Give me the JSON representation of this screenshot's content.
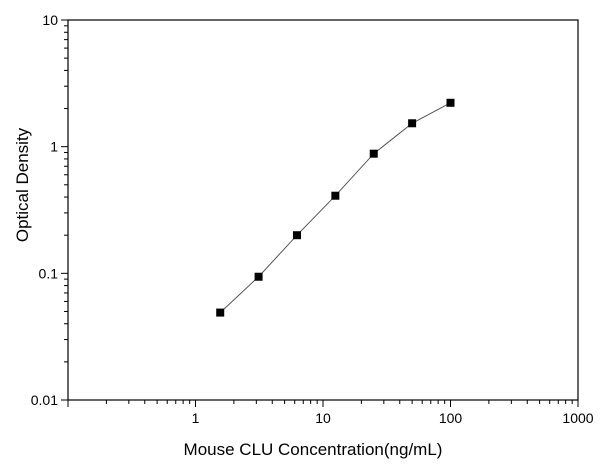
{
  "chart_data": {
    "type": "line",
    "title": "",
    "xlabel": "Mouse CLU Concentration(ng/mL)",
    "ylabel": "Optical  Density",
    "xscale": "log",
    "yscale": "log",
    "xlim": [
      0.1,
      1000
    ],
    "ylim": [
      0.01,
      10
    ],
    "xticks": [
      "1",
      "10",
      "100",
      "1000"
    ],
    "yticks": [
      "0.01",
      "0.1",
      "1",
      "10"
    ],
    "grid": false,
    "legend": "none",
    "series": [
      {
        "marker": "square",
        "color": "#000000",
        "line_color": "#555555",
        "x": [
          1.5625,
          3.125,
          6.25,
          12.5,
          25,
          50,
          100
        ],
        "y": [
          0.049,
          0.094,
          0.2,
          0.41,
          0.88,
          1.53,
          2.22
        ]
      }
    ]
  }
}
